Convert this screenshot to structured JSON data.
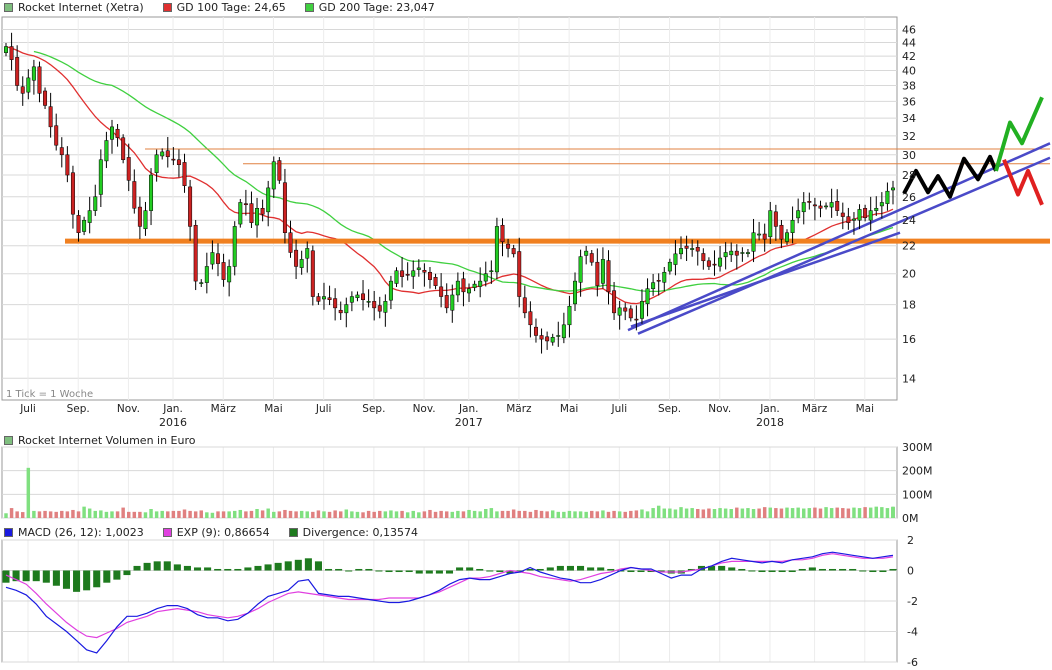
{
  "legends": {
    "price": [
      {
        "label": "Rocket Internet (Xetra)",
        "color": "#7fbf7f"
      },
      {
        "label": "GD 100 Tage: 24,65",
        "color": "#e03030"
      },
      {
        "label": "GD 200 Tage: 23,047",
        "color": "#40d040"
      }
    ],
    "volume": [
      {
        "label": "Rocket Internet Volumen in Euro",
        "color": "#7fbf7f"
      }
    ],
    "macd": [
      {
        "label": "MACD (26, 12): 1,0023",
        "color": "#1a1ae0"
      },
      {
        "label": "EXP (9): 0,86654",
        "color": "#e040e0"
      },
      {
        "label": "Divergence: 0,13574",
        "color": "#1e7a1e"
      }
    ]
  },
  "watermark": "1 Tick = 1 Woche",
  "colors": {
    "up": "#22cc22",
    "down": "#cc2222",
    "wick": "#000000",
    "gd100": "#e03030",
    "gd200": "#40d040",
    "support": "#f08020",
    "resistance": "#e08040",
    "trend": "#4a4ac8",
    "vol_up": "#80e080",
    "vol_down": "#e08080",
    "macd": "#1a1ae0",
    "exp": "#e040e0",
    "div": "#1e7a1e",
    "proj_black": "#000000",
    "proj_green": "#22b022",
    "proj_red": "#e02020",
    "grid": "#d8d8d8",
    "axis": "#999999"
  },
  "chart_data": [
    {
      "type": "candlestick",
      "name": "price",
      "y_scale": "log",
      "ylim": [
        13,
        48
      ],
      "y_ticks": [
        14,
        16,
        18,
        20,
        22,
        24,
        26,
        28,
        30,
        32,
        34,
        36,
        38,
        40,
        42,
        44,
        46
      ],
      "x_ticks": [
        "Juli",
        "Sep.",
        "Nov.",
        "Jan.",
        "März",
        "Mai",
        "Juli",
        "Sep.",
        "Nov.",
        "Jan.",
        "März",
        "Mai",
        "Juli",
        "Sep.",
        "Nov.",
        "Jan.",
        "März",
        "Mai"
      ],
      "year_labels": [
        "2016",
        "2017",
        "2018"
      ],
      "close": [
        43.4,
        41.5,
        38,
        37,
        39,
        40.5,
        37,
        35.5,
        33,
        31,
        30,
        28,
        24.5,
        23,
        24,
        24.8,
        26,
        29.5,
        31.5,
        33,
        31.8,
        29.5,
        27.5,
        25,
        23.5,
        24.8,
        28,
        30,
        30.3,
        29.8,
        29.5,
        29,
        27,
        23.5,
        19.5,
        19.4,
        20.5,
        21.5,
        20.7,
        19.6,
        20.5,
        23.5,
        25.5,
        25.3,
        23.8,
        25,
        24.5,
        26.8,
        29.3,
        27.5,
        23,
        21.5,
        20.5,
        21,
        21.8,
        18.5,
        18.2,
        18.5,
        18.3,
        17.8,
        17.5,
        18,
        18.5,
        18.6,
        18.3,
        18.2,
        17.8,
        17.6,
        18.2,
        19.5,
        20.2,
        19.8,
        19.9,
        20.2,
        20.4,
        20.1,
        19.6,
        19.2,
        18.5,
        17.8,
        18.6,
        19.5,
        18.8,
        19,
        19.3,
        19.5,
        20,
        20.2,
        23.5,
        22.3,
        21.8,
        21.4,
        18.5,
        17.5,
        16.8,
        16.2,
        16,
        15.9,
        16.1,
        16.2,
        16.8,
        17.9,
        19.5,
        21.2,
        21.6,
        20.8,
        19.2,
        21,
        18.8,
        17.5,
        17.8,
        17.6,
        17.2,
        17.1,
        18.2,
        19,
        19.4,
        19.5,
        20.1,
        20.8,
        21.4,
        21.8,
        21.8,
        21.8,
        21.6,
        20.9,
        20.5,
        20.6,
        21.1,
        21.5,
        21.6,
        21.3,
        21.5,
        21.5,
        23,
        22.9,
        22.5,
        24.8,
        23.5,
        22.5,
        23,
        24,
        24.8,
        25.5,
        25.5,
        25.2,
        25,
        25.2,
        25.5,
        24.8,
        24.3,
        23.8,
        24.1,
        24.9,
        24.2,
        24.8,
        25,
        25.5,
        26.5,
        26.8
      ]
    },
    {
      "type": "bar",
      "name": "volume",
      "ylim": [
        0,
        300
      ],
      "y_ticks": [
        "0M",
        "100M",
        "200M",
        "300M"
      ],
      "values": [
        20,
        42,
        28,
        25,
        212,
        30,
        28,
        30,
        28,
        26,
        30,
        28,
        34,
        28,
        48,
        40,
        30,
        32,
        26,
        28,
        28,
        44,
        26,
        26,
        26,
        24,
        38,
        28,
        30,
        28,
        30,
        30,
        36,
        30,
        28,
        32,
        24,
        22,
        28,
        28,
        28,
        30,
        34,
        28,
        30,
        38,
        32,
        40,
        26,
        28,
        34,
        30,
        28,
        30,
        28,
        26,
        32,
        28,
        26,
        32,
        28,
        36,
        28,
        26,
        24,
        30,
        26,
        30,
        28,
        32,
        28,
        30,
        24,
        30,
        24,
        28,
        34,
        26,
        30,
        28,
        26,
        30,
        28,
        34,
        30,
        28,
        38,
        42,
        28,
        30,
        30,
        36,
        30,
        30,
        26,
        34,
        30,
        28,
        32,
        26,
        26,
        30,
        28,
        28,
        26,
        30,
        28,
        32,
        26,
        30,
        28,
        26,
        30,
        32,
        36,
        28,
        42,
        52,
        40,
        40,
        36,
        46,
        40,
        42,
        38,
        36,
        40,
        38,
        42,
        40,
        38,
        44,
        40,
        42,
        38,
        40,
        46,
        44,
        42,
        40,
        44,
        42,
        44,
        40,
        42,
        44,
        40,
        46,
        42,
        44,
        42,
        40,
        44,
        42,
        46,
        44,
        48,
        46,
        42,
        44,
        46,
        44,
        48,
        46,
        44,
        46,
        44
      ],
      "values_precomputed": false
    },
    {
      "type": "line",
      "name": "macd",
      "ylim": [
        -6,
        2
      ],
      "y_ticks": [
        2,
        0,
        -2,
        -4,
        -6
      ],
      "series": [
        {
          "name": "MACD (26, 12)",
          "values": [
            -1.1,
            -1.3,
            -1.6,
            -2.2,
            -3,
            -3.5,
            -4,
            -4.6,
            -5.2,
            -5.4,
            -4.6,
            -3.7,
            -3,
            -3,
            -2.8,
            -2.5,
            -2.3,
            -2.3,
            -2.5,
            -2.9,
            -3.1,
            -3.1,
            -3.3,
            -3.2,
            -2.8,
            -2.2,
            -1.7,
            -1.5,
            -1.3,
            -0.7,
            -0.6,
            -1.5,
            -1.6,
            -1.7,
            -1.7,
            -1.8,
            -1.9,
            -2,
            -2.1,
            -2.1,
            -2,
            -1.8,
            -1.6,
            -1.3,
            -0.9,
            -0.6,
            -0.5,
            -0.6,
            -0.6,
            -0.4,
            -0.2,
            -0.1,
            0.2,
            -0.1,
            -0.3,
            -0.5,
            -0.6,
            -0.8,
            -0.8,
            -0.6,
            -0.3,
            0,
            0.2,
            0.1,
            0.1,
            -0.2,
            -0.5,
            -0.3,
            -0.3,
            0.1,
            0.3,
            0.6,
            0.8,
            0.7,
            0.6,
            0.5,
            0.6,
            0.5,
            0.7,
            0.8,
            0.9,
            1.1,
            1.2,
            1.1,
            1,
            0.9,
            0.8,
            0.9,
            1
          ]
        },
        {
          "name": "EXP (9)",
          "values": [
            -0.3,
            -0.6,
            -0.9,
            -1.5,
            -2.2,
            -2.8,
            -3.4,
            -3.9,
            -4.3,
            -4.4,
            -4.1,
            -3.8,
            -3.4,
            -3.2,
            -3,
            -2.7,
            -2.6,
            -2.5,
            -2.6,
            -2.7,
            -2.9,
            -3,
            -3.1,
            -3,
            -2.8,
            -2.5,
            -2.1,
            -1.8,
            -1.5,
            -1.4,
            -1.5,
            -1.6,
            -1.7,
            -1.8,
            -1.9,
            -1.9,
            -1.9,
            -1.9,
            -1.8,
            -1.8,
            -1.8,
            -1.8,
            -1.6,
            -1.4,
            -1.1,
            -0.8,
            -0.5,
            -0.5,
            -0.4,
            -0.2,
            0,
            -0.1,
            -0.2,
            -0.4,
            -0.5,
            -0.6,
            -0.7,
            -0.6,
            -0.4,
            -0.2,
            -0.1,
            0.1,
            0.2,
            0.1,
            0,
            -0.1,
            -0.1,
            -0.1,
            0,
            0.1,
            0.3,
            0.5,
            0.6,
            0.6,
            0.6,
            0.6,
            0.6,
            0.6,
            0.7,
            0.7,
            0.8,
            1,
            1.1,
            1,
            0.9,
            0.8,
            0.8,
            0.8,
            0.9
          ]
        },
        {
          "name": "Divergence",
          "type": "bar",
          "values": [
            -0.8,
            -0.7,
            -0.7,
            -0.7,
            -0.8,
            -1,
            -1.2,
            -1.4,
            -1.3,
            -1.1,
            -0.8,
            -0.6,
            -0.3,
            0.3,
            0.5,
            0.6,
            0.6,
            0.4,
            0.3,
            0.2,
            0.2,
            0.1,
            0.1,
            0.1,
            0.2,
            0.3,
            0.4,
            0.5,
            0.6,
            0.7,
            0.8,
            0.6,
            0.1,
            0.1,
            0,
            0.1,
            0.1,
            0,
            -0.1,
            -0.1,
            -0.1,
            -0.2,
            -0.2,
            -0.2,
            -0.2,
            0.2,
            0.2,
            0.1,
            0,
            -0.1,
            -0.2,
            -0.1,
            0.1,
            0.1,
            0.2,
            0.3,
            0.3,
            0.3,
            0.2,
            0.2,
            0.1,
            0,
            -0.1,
            -0.1,
            -0.1,
            -0.1,
            -0.2,
            -0.2,
            0.1,
            0.3,
            0.3,
            0.3,
            0.2,
            0.1,
            0,
            -0.1,
            -0.1,
            -0.1,
            -0.1,
            0.1,
            0.2,
            0.1,
            0.1,
            0.1,
            0.1,
            0,
            -0.1,
            -0.1,
            0.1
          ]
        }
      ]
    }
  ]
}
